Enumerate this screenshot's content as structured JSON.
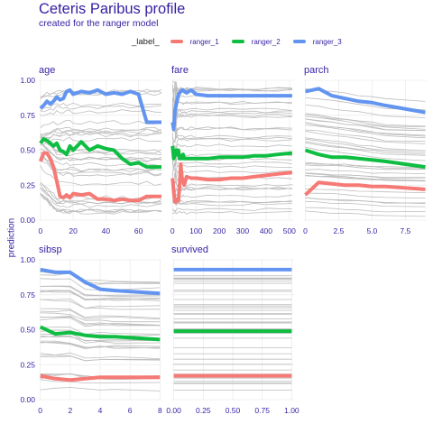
{
  "title": "Ceteris Paribus profile",
  "subtitle": "created for the ranger model",
  "legend": {
    "title": "_label_",
    "items": [
      {
        "name": "ranger_1",
        "color": "#f57a75"
      },
      {
        "name": "ranger_2",
        "color": "#0fbd42"
      },
      {
        "name": "ranger_3",
        "color": "#6395f0"
      }
    ]
  },
  "ylabel": "prediction",
  "colors": {
    "background_lines": "#bdbdbd",
    "text": "#371ea3",
    "grid": "#ebebeb"
  },
  "chart_data": {
    "type": "line",
    "y_range": [
      0,
      1
    ],
    "y_ticks": [
      0,
      0.25,
      0.5,
      0.75,
      1
    ],
    "y_tick_labels": [
      "0.00",
      "0.25",
      "0.50",
      "0.75",
      "1.00"
    ],
    "panels": [
      {
        "name": "age",
        "x_range": [
          -1,
          74
        ],
        "x_ticks": [
          0,
          20,
          40,
          60
        ],
        "x_tick_labels": [
          "0",
          "20",
          "40",
          "60"
        ],
        "series": [
          {
            "label": "ranger_1",
            "x": [
              0,
              2,
              4,
              6,
              8,
              10,
              12,
              14,
              16,
              18,
              20,
              25,
              30,
              35,
              40,
              45,
              50,
              55,
              60,
              65,
              70,
              74
            ],
            "y": [
              0.42,
              0.48,
              0.48,
              0.44,
              0.38,
              0.28,
              0.17,
              0.16,
              0.18,
              0.16,
              0.19,
              0.18,
              0.19,
              0.15,
              0.15,
              0.14,
              0.15,
              0.14,
              0.14,
              0.17,
              0.17,
              0.17
            ]
          },
          {
            "label": "ranger_2",
            "x": [
              0,
              2,
              4,
              6,
              8,
              10,
              12,
              14,
              16,
              18,
              20,
              25,
              30,
              35,
              40,
              45,
              50,
              55,
              60,
              65,
              70,
              74
            ],
            "y": [
              0.55,
              0.58,
              0.57,
              0.55,
              0.53,
              0.55,
              0.5,
              0.49,
              0.47,
              0.53,
              0.5,
              0.56,
              0.5,
              0.53,
              0.51,
              0.5,
              0.44,
              0.4,
              0.41,
              0.38,
              0.38,
              0.38
            ]
          },
          {
            "label": "ranger_3",
            "x": [
              0,
              2,
              4,
              6,
              8,
              10,
              12,
              14,
              16,
              18,
              20,
              25,
              30,
              35,
              40,
              45,
              50,
              55,
              60,
              65,
              70,
              74
            ],
            "y": [
              0.8,
              0.82,
              0.85,
              0.83,
              0.85,
              0.88,
              0.86,
              0.87,
              0.92,
              0.93,
              0.9,
              0.92,
              0.91,
              0.93,
              0.9,
              0.91,
              0.9,
              0.92,
              0.9,
              0.7,
              0.7,
              0.7
            ]
          }
        ]
      },
      {
        "name": "fare",
        "x_range": [
          -5,
          520
        ],
        "x_ticks": [
          0,
          100,
          200,
          300,
          400,
          500
        ],
        "x_tick_labels": [
          "0",
          "100",
          "200",
          "300",
          "400",
          "500"
        ],
        "series": [
          {
            "label": "ranger_1",
            "x": [
              0,
              5,
              10,
              15,
              20,
              25,
              30,
              35,
              40,
              45,
              50,
              60,
              80,
              100,
              150,
              200,
              250,
              300,
              350,
              400,
              450,
              512
            ],
            "y": [
              0.3,
              0.2,
              0.13,
              0.13,
              0.15,
              0.14,
              0.25,
              0.4,
              0.3,
              0.28,
              0.25,
              0.31,
              0.3,
              0.3,
              0.29,
              0.29,
              0.3,
              0.3,
              0.31,
              0.32,
              0.33,
              0.34
            ]
          },
          {
            "label": "ranger_2",
            "x": [
              0,
              5,
              10,
              15,
              20,
              25,
              30,
              35,
              40,
              45,
              50,
              60,
              80,
              100,
              150,
              200,
              250,
              300,
              350,
              400,
              450,
              512
            ],
            "y": [
              0.53,
              0.44,
              0.46,
              0.5,
              0.47,
              0.5,
              0.44,
              0.46,
              0.44,
              0.47,
              0.44,
              0.44,
              0.44,
              0.44,
              0.44,
              0.45,
              0.45,
              0.45,
              0.46,
              0.46,
              0.47,
              0.48
            ]
          },
          {
            "label": "ranger_3",
            "x": [
              0,
              5,
              10,
              15,
              20,
              25,
              30,
              35,
              40,
              45,
              50,
              60,
              80,
              100,
              150,
              200,
              250,
              300,
              350,
              400,
              450,
              512
            ],
            "y": [
              0.7,
              0.65,
              0.78,
              0.82,
              0.86,
              0.9,
              0.91,
              0.92,
              0.93,
              0.93,
              0.92,
              0.91,
              0.93,
              0.9,
              0.89,
              0.89,
              0.89,
              0.89,
              0.89,
              0.89,
              0.89,
              0.89
            ]
          }
        ]
      },
      {
        "name": "parch",
        "x_range": [
          -0.1,
          9.1
        ],
        "x_ticks": [
          0,
          2.5,
          5,
          7.5
        ],
        "x_tick_labels": [
          "0",
          "2.5",
          "5.0",
          "7.5"
        ],
        "series": [
          {
            "label": "ranger_1",
            "x": [
              0,
              1,
              2,
              3,
              4,
              5,
              6,
              9
            ],
            "y": [
              0.18,
              0.27,
              0.26,
              0.25,
              0.25,
              0.24,
              0.24,
              0.22
            ]
          },
          {
            "label": "ranger_2",
            "x": [
              0,
              1,
              2,
              3,
              4,
              5,
              6,
              9
            ],
            "y": [
              0.5,
              0.47,
              0.45,
              0.45,
              0.44,
              0.43,
              0.42,
              0.38
            ]
          },
          {
            "label": "ranger_3",
            "x": [
              0,
              1,
              2,
              3,
              4,
              5,
              6,
              9
            ],
            "y": [
              0.92,
              0.94,
              0.89,
              0.87,
              0.85,
              0.84,
              0.82,
              0.77
            ]
          }
        ]
      },
      {
        "name": "sibsp",
        "x_range": [
          -0.1,
          8.1
        ],
        "x_ticks": [
          0,
          2,
          4,
          6,
          8
        ],
        "x_tick_labels": [
          "0",
          "2",
          "4",
          "6",
          "8"
        ],
        "series": [
          {
            "label": "ranger_1",
            "x": [
              0,
              1,
              2,
              3,
              4,
              5,
              8
            ],
            "y": [
              0.17,
              0.15,
              0.14,
              0.15,
              0.16,
              0.16,
              0.16
            ]
          },
          {
            "label": "ranger_2",
            "x": [
              0,
              1,
              2,
              3,
              4,
              5,
              8
            ],
            "y": [
              0.52,
              0.47,
              0.48,
              0.46,
              0.45,
              0.45,
              0.43
            ]
          },
          {
            "label": "ranger_3",
            "x": [
              0,
              1,
              2,
              3,
              4,
              5,
              8
            ],
            "y": [
              0.93,
              0.91,
              0.91,
              0.84,
              0.79,
              0.78,
              0.76
            ]
          }
        ]
      },
      {
        "name": "survived",
        "x_range": [
          -0.02,
          1.02
        ],
        "x_ticks": [
          0,
          0.25,
          0.5,
          0.75,
          1
        ],
        "x_tick_labels": [
          "0.00",
          "0.25",
          "0.50",
          "0.75",
          "1.00"
        ],
        "series": [
          {
            "label": "ranger_1",
            "x": [
              0,
              1
            ],
            "y": [
              0.17,
              0.17
            ]
          },
          {
            "label": "ranger_2",
            "x": [
              0,
              1
            ],
            "y": [
              0.49,
              0.49
            ]
          },
          {
            "label": "ranger_3",
            "x": [
              0,
              1
            ],
            "y": [
              0.93,
              0.93
            ]
          }
        ]
      }
    ]
  }
}
